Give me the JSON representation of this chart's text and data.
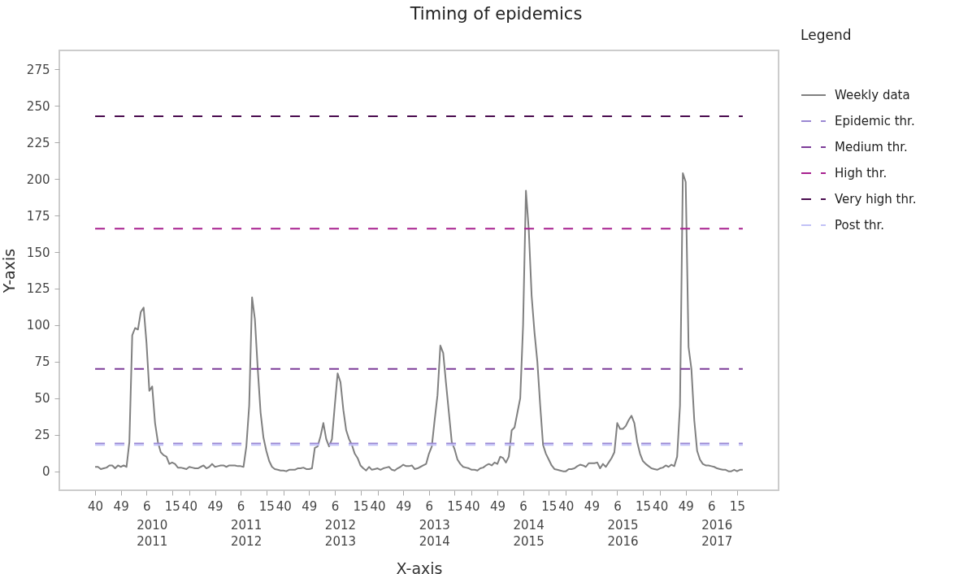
{
  "chart_data": {
    "type": "line",
    "title": "Timing of epidemics",
    "xlabel": "X-axis",
    "ylabel": "Y-axis",
    "legend_title": "Legend",
    "legend": "right",
    "grid": false,
    "marker": "none",
    "ylim": [
      -13,
      288
    ],
    "yticks": [
      0,
      25,
      50,
      75,
      100,
      125,
      150,
      175,
      200,
      225,
      250,
      275
    ],
    "categories": [
      "40",
      null,
      null,
      null,
      null,
      null,
      null,
      null,
      null,
      "49",
      null,
      null,
      null,
      null,
      null,
      null,
      null,
      null,
      "6",
      null,
      null,
      null,
      null,
      null,
      null,
      null,
      null,
      "15",
      null,
      null,
      null,
      null,
      null,
      "40",
      null,
      null,
      null,
      null,
      null,
      null,
      null,
      null,
      "49",
      null,
      null,
      null,
      null,
      null,
      null,
      null,
      null,
      "6",
      null,
      null,
      null,
      null,
      null,
      null,
      null,
      null,
      "15",
      null,
      null,
      null,
      null,
      null,
      "40",
      null,
      null,
      null,
      null,
      null,
      null,
      null,
      null,
      "49",
      null,
      null,
      null,
      null,
      null,
      null,
      null,
      null,
      "6",
      null,
      null,
      null,
      null,
      null,
      null,
      null,
      null,
      "15",
      null,
      null,
      null,
      null,
      null,
      "40",
      null,
      null,
      null,
      null,
      null,
      null,
      null,
      null,
      "49",
      null,
      null,
      null,
      null,
      null,
      null,
      null,
      null,
      "6",
      null,
      null,
      null,
      null,
      null,
      null,
      null,
      null,
      "15",
      null,
      null,
      null,
      null,
      null,
      "40",
      null,
      null,
      null,
      null,
      null,
      null,
      null,
      null,
      "49",
      null,
      null,
      null,
      null,
      null,
      null,
      null,
      null,
      "6",
      null,
      null,
      null,
      null,
      null,
      null,
      null,
      null,
      "15",
      null,
      null,
      null,
      null,
      null,
      "40",
      null,
      null,
      null,
      null,
      null,
      null,
      null,
      null,
      "49",
      null,
      null,
      null,
      null,
      null,
      null,
      null,
      null,
      "6",
      null,
      null,
      null,
      null,
      null,
      null,
      null,
      null,
      "15",
      null,
      null,
      null,
      null,
      null,
      "40",
      null,
      null,
      null,
      null,
      null,
      null,
      null,
      null,
      "49",
      null,
      null,
      null,
      null,
      null,
      null,
      null,
      null,
      "6",
      null,
      null,
      null,
      null,
      null,
      null,
      null,
      null,
      "15",
      null,
      null
    ],
    "annotations": [
      "2010\n2011",
      "2011\n2012",
      "2012\n2013",
      "2013\n2014",
      "2014\n2015",
      "2015\n2016",
      "2016\n2017"
    ],
    "ref_lines": [
      {
        "axis": "y",
        "value": 19,
        "label": "Epidemic thr.",
        "color": "#9a88d2",
        "line_style": "dashed"
      },
      {
        "axis": "y",
        "value": 70,
        "label": "Medium thr.",
        "color": "#7d3c98",
        "line_style": "dashed"
      },
      {
        "axis": "y",
        "value": 166,
        "label": "High thr.",
        "color": "#a8208f",
        "line_style": "dashed"
      },
      {
        "axis": "y",
        "value": 243,
        "label": "Very high thr.",
        "color": "#4a0c4f",
        "line_style": "dashed"
      },
      {
        "axis": "y",
        "value": 18,
        "label": "Post thr.",
        "color": "#c2c2f7",
        "line_style": "dashed"
      }
    ],
    "series": [
      {
        "name": "Weekly data",
        "color": "#808080",
        "line_style": "solid",
        "values": [
          3,
          3,
          1.5,
          2,
          2.5,
          4,
          4,
          2,
          4,
          3,
          4,
          3,
          20,
          93,
          98,
          97,
          109,
          112,
          88,
          55,
          58,
          33,
          20,
          13,
          11,
          10,
          5,
          6,
          5,
          2.5,
          2.5,
          2,
          1.5,
          3,
          2.5,
          2,
          2,
          3,
          4,
          2,
          3,
          5,
          3,
          3.5,
          4,
          4,
          3,
          4,
          4,
          4,
          3.5,
          3.5,
          3,
          17,
          45,
          119,
          104,
          70,
          40,
          23,
          14,
          7,
          3,
          1.5,
          1,
          0.5,
          0.5,
          0,
          1,
          1,
          1,
          2,
          2,
          2.5,
          1.5,
          1.5,
          2,
          16,
          17,
          24,
          33,
          22,
          17,
          22,
          45,
          67,
          61,
          42,
          28,
          22,
          18,
          12,
          9,
          4,
          2,
          0.5,
          3,
          1,
          1.5,
          2,
          1,
          2,
          2.5,
          3,
          1,
          0.5,
          2,
          3,
          4.5,
          3.5,
          3.5,
          4,
          1.5,
          2,
          3,
          4,
          5,
          12,
          17,
          35,
          52,
          86,
          81,
          60,
          40,
          20,
          15,
          8,
          5,
          3,
          2.5,
          2,
          1,
          1,
          0.5,
          2,
          2.5,
          4,
          5,
          4,
          6,
          5,
          10,
          9,
          6,
          10,
          28,
          30,
          40,
          50,
          100,
          192,
          165,
          120,
          95,
          75,
          45,
          18,
          12,
          8,
          4,
          1.5,
          1,
          0.5,
          0,
          0,
          1.5,
          1.5,
          2,
          3.5,
          4.5,
          4,
          3,
          5.5,
          5.5,
          5.5,
          6,
          2,
          5,
          3,
          6,
          9,
          13,
          33,
          29,
          29,
          31,
          35,
          38,
          33,
          20,
          12,
          7,
          5,
          3.5,
          2,
          1.5,
          1,
          2,
          2.5,
          4,
          3,
          4.5,
          3.5,
          10,
          45,
          204,
          198,
          85,
          70,
          35,
          14,
          8,
          5,
          4,
          4,
          3.5,
          3,
          2,
          1.5,
          1,
          1,
          0,
          0,
          1,
          0,
          1,
          1
        ]
      }
    ]
  }
}
